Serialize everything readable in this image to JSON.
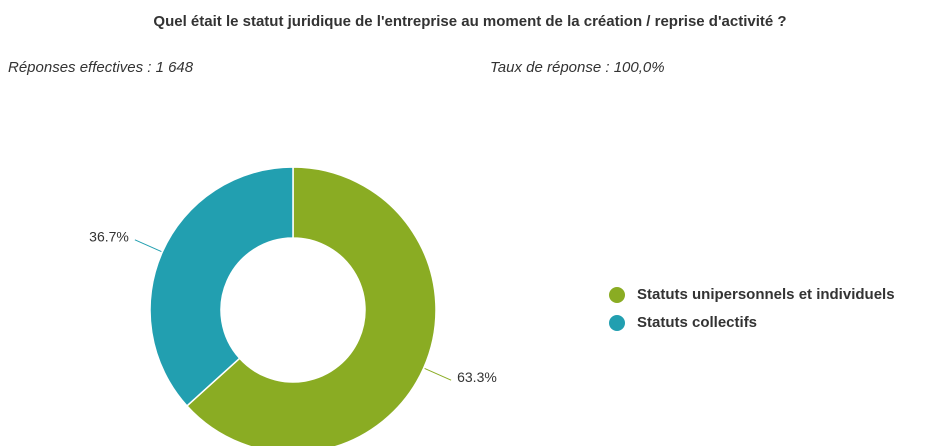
{
  "chart_data": {
    "type": "donut",
    "title": "Quel était le statut juridique de l'entreprise au moment de la création / reprise d'activité ?",
    "subtitles": [
      "Réponses effectives : 1 648",
      "Taux de réponse : 100,0%"
    ],
    "categories": [
      "Statuts unipersonnels et individuels",
      "Statuts collectifs"
    ],
    "values": [
      63.3,
      36.7
    ],
    "value_labels": [
      "63.3%",
      "36.7%"
    ],
    "colors": [
      "#8aac23",
      "#229fb0"
    ],
    "legend": "right"
  }
}
